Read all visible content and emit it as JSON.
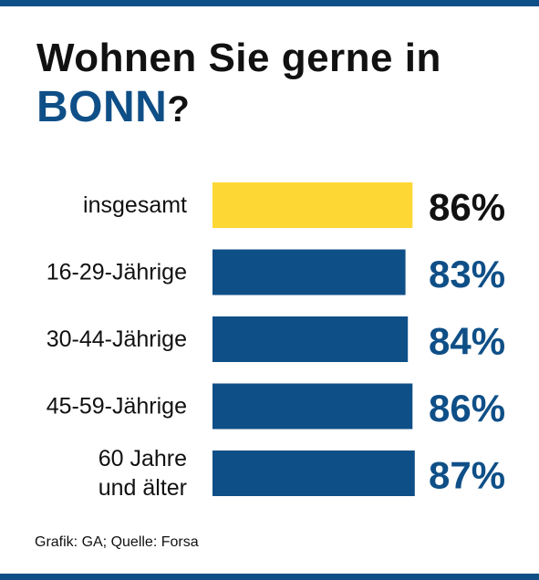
{
  "title": {
    "line1": "Wohnen Sie gerne in",
    "city": "BONN",
    "qmark": "?"
  },
  "source": "Grafik: GA; Quelle: Forsa",
  "colors": {
    "accent": "#0f4f87",
    "highlight": "#fdd835",
    "text": "#111111"
  },
  "chart_data": {
    "type": "bar",
    "orientation": "horizontal",
    "categories": [
      "insgesamt",
      "16-29-Jährige",
      "30-44-Jährige",
      "45-59-Jährige",
      "60 Jahre und älter"
    ],
    "category_lines": [
      [
        "insgesamt"
      ],
      [
        "16-29-Jährige"
      ],
      [
        "30-44-Jährige"
      ],
      [
        "45-59-Jährige"
      ],
      [
        "60 Jahre",
        "und älter"
      ]
    ],
    "values": [
      86,
      83,
      84,
      86,
      87
    ],
    "value_labels": [
      "86%",
      "83%",
      "84%",
      "86%",
      "87%"
    ],
    "highlight_index": 0,
    "xlim": [
      0,
      100
    ],
    "grid": false,
    "legend": "none"
  }
}
